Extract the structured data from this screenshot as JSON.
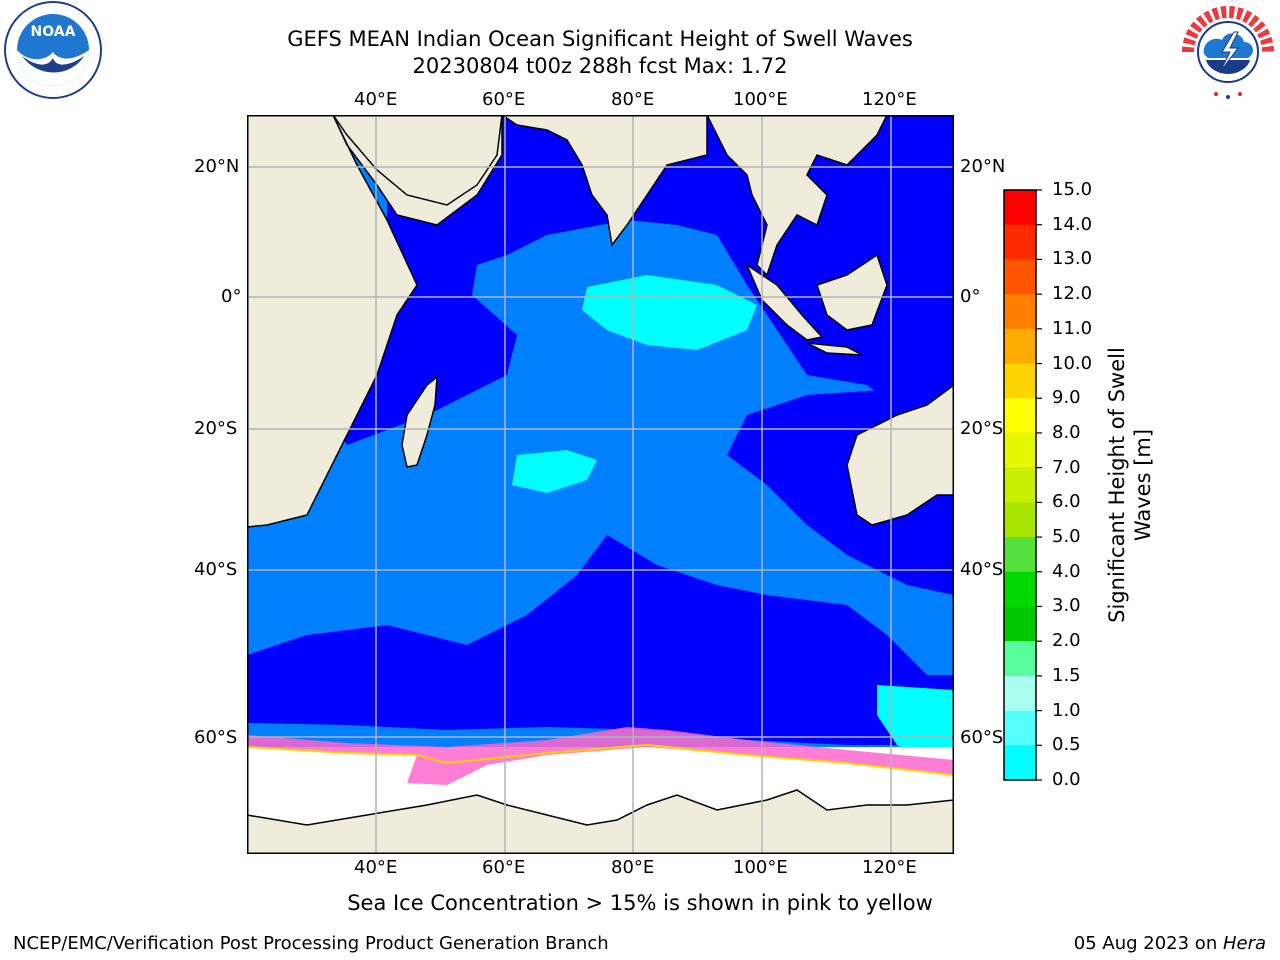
{
  "title": {
    "line1": "GEFS MEAN Indian Ocean Significant Height of Swell Waves",
    "line2": "20230804 t00z 288h fcst   Max: 1.72"
  },
  "logos": {
    "left": {
      "name": "NOAA",
      "ring_text": "NATIONAL OCEANIC AND ATMOSPHERIC ADMINISTRATION · U.S. DEPARTMENT OF COMMERCE"
    },
    "right": {
      "name": "NATIONAL WEATHER SERVICE"
    }
  },
  "map": {
    "lon_ticks_top": [
      "40°E",
      "60°E",
      "80°E",
      "100°E",
      "120°E"
    ],
    "lon_ticks_bottom": [
      "40°E",
      "60°E",
      "80°E",
      "100°E",
      "120°E"
    ],
    "lat_ticks_left": [
      "20°N",
      "0°",
      "20°S",
      "40°S",
      "60°S"
    ],
    "lat_ticks_right": [
      "20°N",
      "0°",
      "20°S",
      "40°S",
      "60°S"
    ],
    "lon_range": [
      20,
      130
    ],
    "lat_range": [
      -74,
      28
    ],
    "grid": true
  },
  "colorbar": {
    "title_line1": "Significant Height of Swell",
    "title_line2": "Waves [m]",
    "labels": [
      "15.0",
      "14.0",
      "13.0",
      "12.0",
      "11.0",
      "10.0",
      "9.0",
      "8.0",
      "7.0",
      "6.0",
      "5.0",
      "4.0",
      "3.0",
      "2.0",
      "1.5",
      "1.0",
      "0.5",
      "0.0"
    ],
    "colors": [
      "#ff0000",
      "#ff2a00",
      "#ff5500",
      "#ff7f00",
      "#ffaa00",
      "#ffd400",
      "#ffff00",
      "#e6f700",
      "#c8ee00",
      "#a8e600",
      "#55e03c",
      "#00d900",
      "#00c800",
      "#56ff9a",
      "#a8fff0",
      "#55ffff",
      "#00ffff",
      "#0080ff",
      "#0000ff"
    ]
  },
  "legend_colors": {
    "land": "#efecdc",
    "ocean_low": "#0000ff",
    "ocean_mid": "#0080ff",
    "ocean_high": "#00ffff",
    "ice_pink": "#ff66cc"
  },
  "note": "Sea Ice Concentration > 15% is shown in pink to yellow",
  "footer": {
    "left": "NCEP/EMC/Verification Post Processing Product Generation Branch",
    "right_prefix": "05 Aug 2023 on ",
    "right_italic": "Hera"
  }
}
